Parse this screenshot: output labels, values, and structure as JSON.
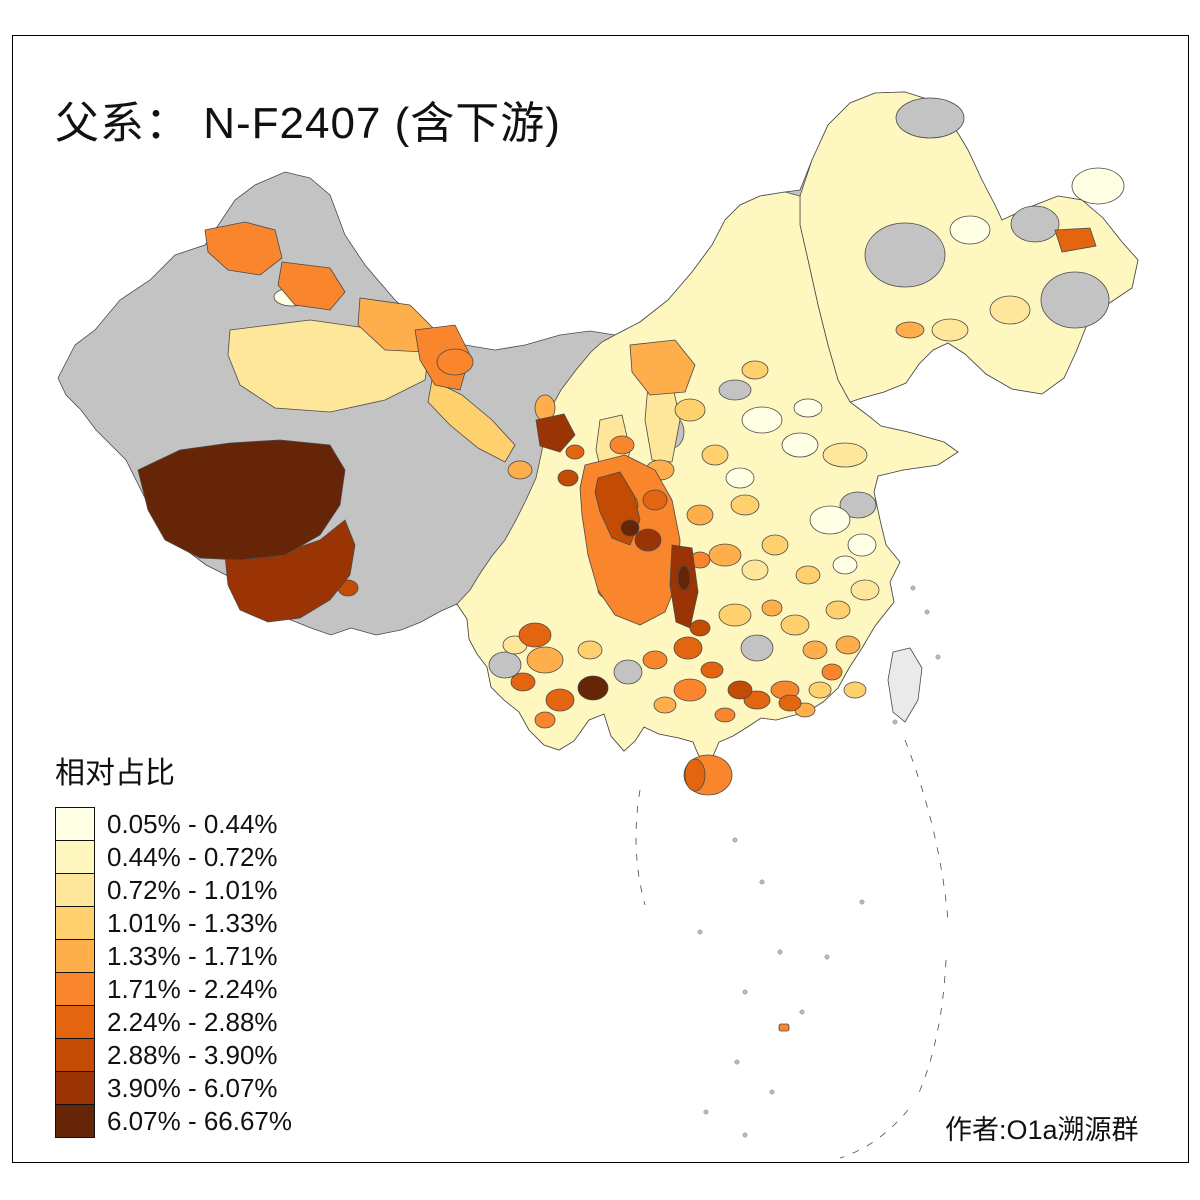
{
  "title": "父系： N-F2407 (含下游)",
  "legend": {
    "title": "相对占比",
    "items": [
      {
        "label": "0.05% - 0.44%",
        "color": "#FFFFE5"
      },
      {
        "label": "0.44% - 0.72%",
        "color": "#FFF7C0"
      },
      {
        "label": "0.72% - 1.01%",
        "color": "#FEE79A"
      },
      {
        "label": "1.01% - 1.33%",
        "color": "#FED16E"
      },
      {
        "label": "1.33% - 1.71%",
        "color": "#FEAF4B"
      },
      {
        "label": "1.71% - 2.24%",
        "color": "#F9862C"
      },
      {
        "label": "2.24% - 2.88%",
        "color": "#E4650F"
      },
      {
        "label": "2.88% - 3.90%",
        "color": "#C44B04"
      },
      {
        "label": "3.90% - 6.07%",
        "color": "#9A3404"
      },
      {
        "label": "6.07% - 66.67%",
        "color": "#662506"
      }
    ],
    "no_data_color": "#C3C3C3"
  },
  "attribution": "作者:O1a溯源群",
  "map_subject": "China prefecture-level choropleth of relative frequency of paternal haplogroup N-F2407 (including downstream)"
}
